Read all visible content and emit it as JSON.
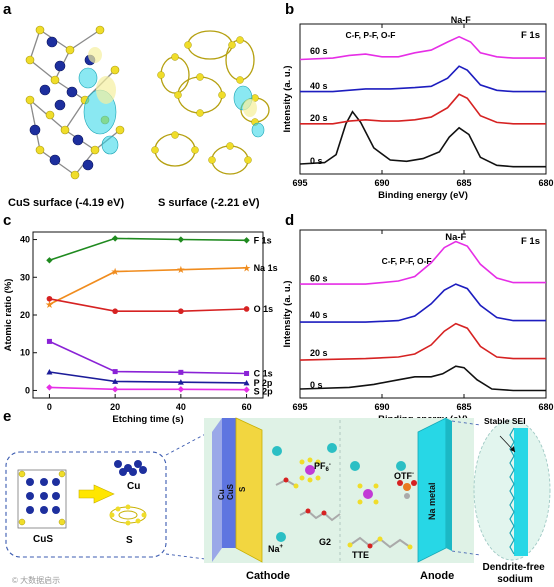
{
  "panels": {
    "a": {
      "label": "a",
      "left_caption": "CuS surface (-4.19 eV)",
      "right_caption": "S surface (-2.21 eV)"
    },
    "e": {
      "label": "e",
      "inset_cus_label": "CuS",
      "inset_cu_label": "Cu",
      "inset_s_label": "S",
      "cathode_side_label": "Cu\nCuS",
      "cathode_face_label": "S",
      "pf6_label": "PF6-",
      "na_plus_label": "Na+",
      "g2_label": "G2",
      "otf_label": "OTF-",
      "tte_label": "TTE",
      "na_metal_label": "Na metal",
      "cathode_label": "Cathode",
      "anode_label": "Anode",
      "sei_label": "Stable SEI",
      "dendrite_label": "Dendrite-free\nsodium",
      "watermark": "© 大数据启示"
    }
  },
  "colors": {
    "magenta": "#e62ee6",
    "blue": "#1d1dbf",
    "red": "#d62222",
    "black": "#111111",
    "green": "#1f8a1f",
    "orange": "#f08c1e",
    "purple": "#8a22d6",
    "navy": "#1c1c99",
    "cyan": "#29d6e8",
    "yellow": "#f0dd2a"
  },
  "chart_data": [
    {
      "panel": "b",
      "type": "line",
      "label": "b",
      "corner_text": "F 1s",
      "xlabel": "Binding energy (eV)",
      "ylabel": "Intensity (a. u.)",
      "xlim": [
        695,
        680
      ],
      "xticks": [
        695,
        690,
        685,
        680
      ],
      "annotations": [
        "C-F, P-F, O-F",
        "Na-F"
      ],
      "series": [
        {
          "name": "0 s",
          "color": "#111111",
          "baseline": 0.0,
          "points": [
            [
              695,
              0.03
            ],
            [
              693.5,
              0.04
            ],
            [
              692.8,
              0.1
            ],
            [
              692.2,
              0.33
            ],
            [
              691.8,
              0.42
            ],
            [
              691.3,
              0.34
            ],
            [
              690.5,
              0.15
            ],
            [
              689.5,
              0.06
            ],
            [
              688.5,
              0.05
            ],
            [
              687.5,
              0.07
            ],
            [
              686.5,
              0.12
            ],
            [
              685.9,
              0.23
            ],
            [
              685.3,
              0.3
            ],
            [
              684.7,
              0.25
            ],
            [
              684.0,
              0.08
            ],
            [
              683.0,
              0.02
            ],
            [
              682,
              0.01
            ],
            [
              680,
              0.01
            ]
          ]
        },
        {
          "name": "20 s",
          "color": "#d62222",
          "baseline": 0.32,
          "points": [
            [
              695,
              0.33
            ],
            [
              693,
              0.33
            ],
            [
              692,
              0.35
            ],
            [
              691,
              0.36
            ],
            [
              690,
              0.35
            ],
            [
              689,
              0.35
            ],
            [
              688,
              0.36
            ],
            [
              687,
              0.38
            ],
            [
              686,
              0.45
            ],
            [
              685.3,
              0.55
            ],
            [
              684.8,
              0.52
            ],
            [
              684,
              0.39
            ],
            [
              683,
              0.34
            ],
            [
              682,
              0.33
            ],
            [
              680,
              0.33
            ]
          ]
        },
        {
          "name": "40 s",
          "color": "#1d1dbf",
          "baseline": 0.56,
          "points": [
            [
              695,
              0.57
            ],
            [
              693,
              0.57
            ],
            [
              691,
              0.59
            ],
            [
              689.5,
              0.59
            ],
            [
              688,
              0.6
            ],
            [
              687,
              0.61
            ],
            [
              686,
              0.67
            ],
            [
              685.3,
              0.76
            ],
            [
              684.8,
              0.73
            ],
            [
              684,
              0.62
            ],
            [
              683,
              0.58
            ],
            [
              682,
              0.57
            ],
            [
              680,
              0.57
            ]
          ]
        },
        {
          "name": "60 s",
          "color": "#e62ee6",
          "baseline": 0.82,
          "points": [
            [
              695,
              0.81
            ],
            [
              693,
              0.82
            ],
            [
              692,
              0.84
            ],
            [
              691,
              0.85
            ],
            [
              690,
              0.83
            ],
            [
              689,
              0.83
            ],
            [
              688,
              0.86
            ],
            [
              687,
              0.88
            ],
            [
              686,
              0.94
            ],
            [
              685.3,
              0.98
            ],
            [
              684.6,
              0.94
            ],
            [
              684,
              0.86
            ],
            [
              683,
              0.83
            ],
            [
              682,
              0.82
            ],
            [
              680,
              0.82
            ]
          ]
        }
      ]
    },
    {
      "panel": "c",
      "type": "line",
      "label": "c",
      "xlabel": "Etching time (s)",
      "ylabel": "Atomic ratio (%)",
      "xlim": [
        -5,
        65
      ],
      "ylim": [
        -2,
        42
      ],
      "xticks": [
        0,
        20,
        40,
        60
      ],
      "yticks": [
        0,
        10,
        20,
        30,
        40
      ],
      "x": [
        0,
        20,
        40,
        60
      ],
      "series": [
        {
          "name": "F 1s",
          "color": "#1f8a1f",
          "values": [
            34.5,
            40.3,
            40.0,
            39.8
          ]
        },
        {
          "name": "Na 1s",
          "color": "#f08c1e",
          "values": [
            22.8,
            31.5,
            32.0,
            32.5
          ]
        },
        {
          "name": "O 1s",
          "color": "#d62222",
          "values": [
            24.3,
            21.0,
            21.0,
            21.6
          ]
        },
        {
          "name": "C 1s",
          "color": "#8a22d6",
          "values": [
            13.0,
            5.0,
            4.8,
            4.5
          ]
        },
        {
          "name": "P 2p",
          "color": "#1c1c99",
          "values": [
            4.9,
            2.4,
            2.2,
            2.0
          ]
        },
        {
          "name": "S 2p",
          "color": "#e62ee6",
          "values": [
            0.8,
            0.3,
            0.3,
            0.2
          ]
        }
      ]
    },
    {
      "panel": "d",
      "type": "line",
      "label": "d",
      "corner_text": "F 1s",
      "xlabel": "Binding energy (eV)",
      "ylabel": "Intensity (a. u.)",
      "xlim": [
        695,
        680
      ],
      "xticks": [
        695,
        690,
        685,
        680
      ],
      "annotations": [
        "C-F, P-F, O-F",
        "Na-F"
      ],
      "series": [
        {
          "name": "0 s",
          "color": "#111111",
          "baseline": 0.0,
          "points": [
            [
              695,
              0.02
            ],
            [
              692,
              0.03
            ],
            [
              690.5,
              0.05
            ],
            [
              689,
              0.08
            ],
            [
              688,
              0.1
            ],
            [
              687,
              0.1
            ],
            [
              686.3,
              0.12
            ],
            [
              685.5,
              0.17
            ],
            [
              685,
              0.16
            ],
            [
              684.2,
              0.08
            ],
            [
              683.3,
              0.02
            ],
            [
              682,
              0.01
            ],
            [
              680,
              0.01
            ]
          ]
        },
        {
          "name": "20 s",
          "color": "#d62222",
          "baseline": 0.21,
          "points": [
            [
              695,
              0.21
            ],
            [
              691,
              0.22
            ],
            [
              689,
              0.23
            ],
            [
              688,
              0.25
            ],
            [
              687,
              0.31
            ],
            [
              686.2,
              0.4
            ],
            [
              685.5,
              0.45
            ],
            [
              684.8,
              0.42
            ],
            [
              684,
              0.3
            ],
            [
              683,
              0.23
            ],
            [
              682,
              0.22
            ],
            [
              680,
              0.22
            ]
          ]
        },
        {
          "name": "40 s",
          "color": "#1d1dbf",
          "baseline": 0.46,
          "points": [
            [
              695,
              0.46
            ],
            [
              691,
              0.46
            ],
            [
              689,
              0.47
            ],
            [
              688,
              0.5
            ],
            [
              687,
              0.58
            ],
            [
              686.2,
              0.67
            ],
            [
              685.5,
              0.71
            ],
            [
              684.8,
              0.68
            ],
            [
              684,
              0.57
            ],
            [
              683,
              0.49
            ],
            [
              682,
              0.47
            ],
            [
              680,
              0.47
            ]
          ]
        },
        {
          "name": "60 s",
          "color": "#e62ee6",
          "baseline": 0.7,
          "points": [
            [
              695,
              0.71
            ],
            [
              691,
              0.71
            ],
            [
              689,
              0.73
            ],
            [
              688,
              0.76
            ],
            [
              687,
              0.85
            ],
            [
              686.2,
              0.95
            ],
            [
              685.5,
              0.99
            ],
            [
              684.8,
              0.96
            ],
            [
              684,
              0.84
            ],
            [
              683,
              0.75
            ],
            [
              682,
              0.72
            ],
            [
              680,
              0.72
            ]
          ]
        }
      ]
    }
  ]
}
